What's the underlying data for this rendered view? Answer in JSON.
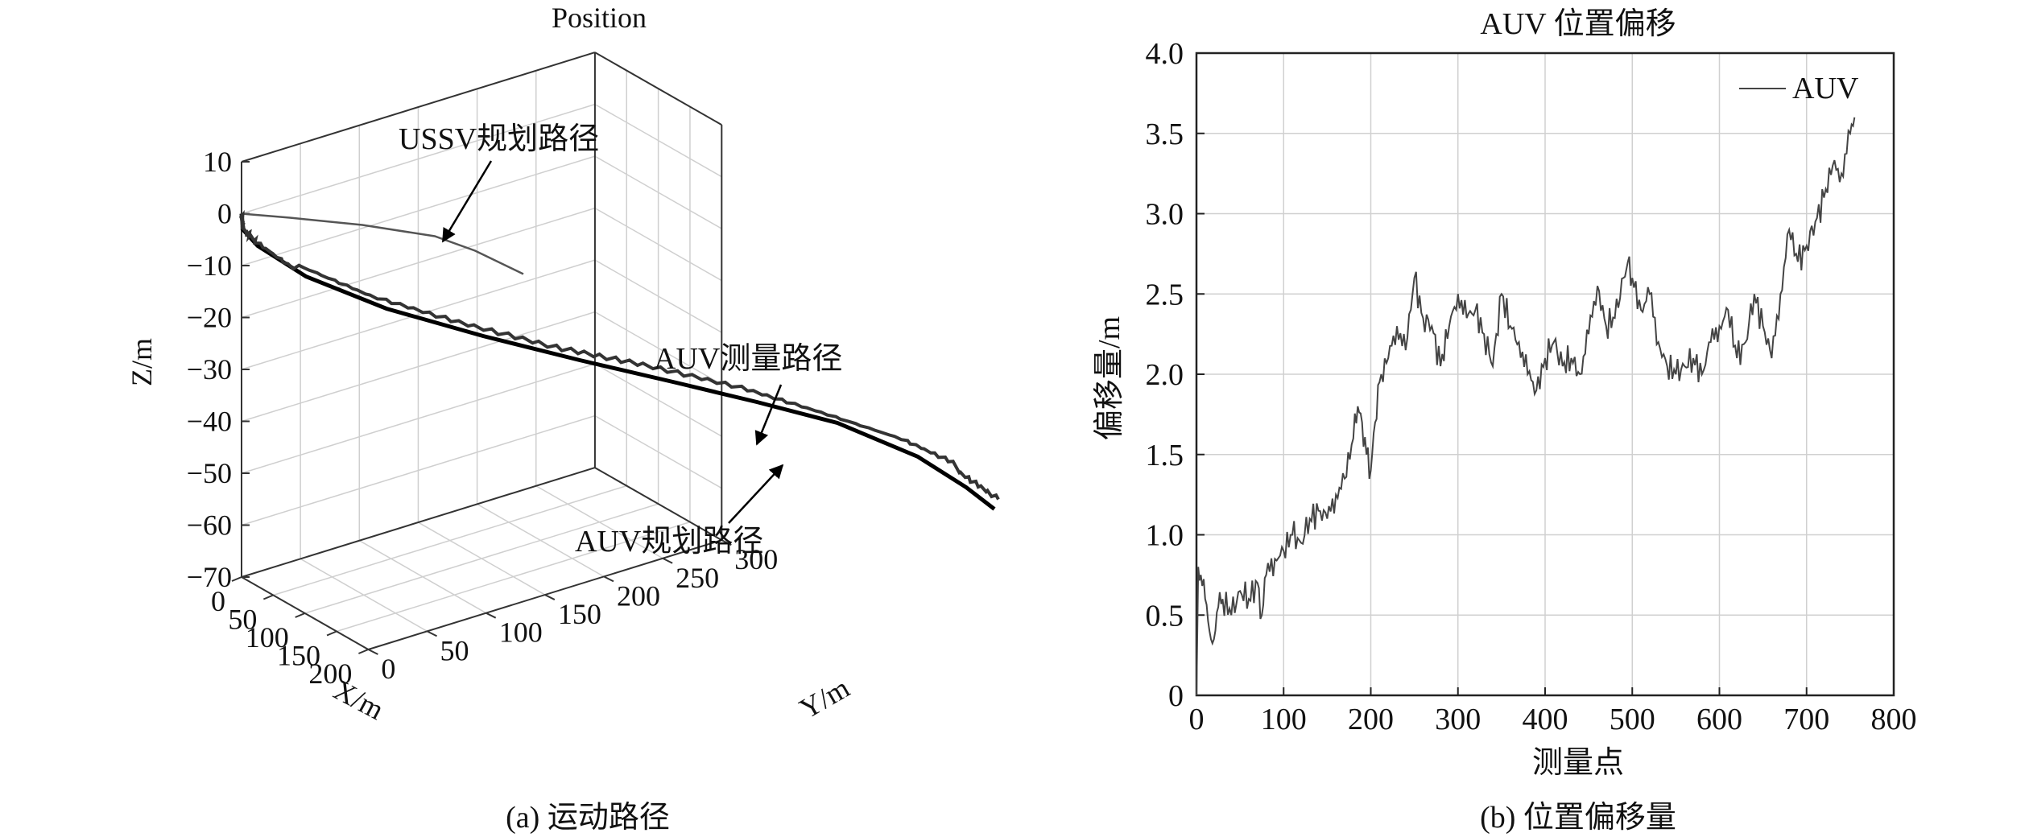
{
  "chart_data": [
    {
      "type": "line",
      "subtype": "3d-trajectory",
      "title": "Position",
      "xlabel": "X/m",
      "ylabel": "Y/m",
      "zlabel": "Z/m",
      "xlim": [
        0,
        200
      ],
      "ylim": [
        0,
        300
      ],
      "zlim": [
        -70,
        10
      ],
      "x_ticks": [
        "0",
        "50",
        "100",
        "150",
        "200"
      ],
      "y_ticks": [
        "0",
        "50",
        "100",
        "150",
        "200",
        "250",
        "300"
      ],
      "z_ticks": [
        "10",
        "0",
        "−10",
        "−20",
        "−30",
        "−40",
        "−50",
        "−60",
        "−70"
      ],
      "grid": true,
      "annotations": [
        "USSV规划路径",
        "AUV测量路径",
        "AUV规划路径"
      ],
      "caption": "(a) 运动路径",
      "series": [
        {
          "name": "USSV规划路径",
          "points": [
            [
              0,
              0,
              0
            ],
            [
              20,
              15,
              0
            ],
            [
              45,
              30,
              0
            ],
            [
              75,
              45,
              0
            ],
            [
              105,
              55,
              0
            ],
            [
              135,
              62,
              0
            ]
          ]
        },
        {
          "name": "AUV规划路径",
          "points": [
            [
              0,
              0,
              0
            ],
            [
              1,
              1,
              -3
            ],
            [
              10,
              10,
              -10
            ],
            [
              28,
              28,
              -20
            ],
            [
              50,
              50,
              -30
            ],
            [
              75,
              75,
              -38
            ],
            [
              100,
              100,
              -44
            ],
            [
              125,
              125,
              -49
            ],
            [
              150,
              150,
              -54
            ],
            [
              175,
              175,
              -58
            ],
            [
              190,
              190,
              -62
            ],
            [
              200,
              200,
              -66
            ]
          ]
        },
        {
          "name": "AUV测量路径",
          "points": [
            [
              0,
              0,
              0
            ],
            [
              1,
              1,
              -3
            ],
            [
              10,
              10,
              -10
            ],
            [
              28,
              28,
              -20
            ],
            [
              50,
              50,
              -29
            ],
            [
              75,
              75,
              -36
            ],
            [
              100,
              100,
              -42
            ],
            [
              125,
              125,
              -46
            ],
            [
              150,
              150,
              -51
            ],
            [
              175,
              175,
              -56
            ],
            [
              190,
              190,
              -60
            ],
            [
              200,
              200,
              -64
            ]
          ]
        }
      ]
    },
    {
      "type": "line",
      "title": "AUV 位置偏移",
      "xlabel": "测量点",
      "ylabel": "偏移量/m",
      "xlim": [
        0,
        800
      ],
      "ylim": [
        0,
        4.0
      ],
      "x_ticks": [
        "0",
        "100",
        "200",
        "300",
        "400",
        "500",
        "600",
        "700",
        "800"
      ],
      "y_ticks": [
        "4.0",
        "3.5",
        "3.0",
        "2.5",
        "2.0",
        "1.5",
        "1.0",
        "0.5",
        "0"
      ],
      "grid": true,
      "legend_position": "top-right",
      "caption": "(b) 位置偏移量",
      "series": [
        {
          "name": "AUV",
          "x": [
            0,
            2,
            5,
            10,
            15,
            20,
            25,
            30,
            40,
            50,
            60,
            70,
            75,
            80,
            90,
            100,
            110,
            120,
            130,
            140,
            150,
            160,
            170,
            180,
            185,
            190,
            195,
            200,
            205,
            210,
            220,
            230,
            240,
            250,
            260,
            270,
            280,
            290,
            300,
            310,
            320,
            330,
            340,
            350,
            360,
            370,
            380,
            390,
            400,
            410,
            420,
            430,
            440,
            450,
            460,
            470,
            480,
            490,
            495,
            500,
            510,
            520,
            530,
            540,
            550,
            560,
            570,
            580,
            590,
            600,
            610,
            620,
            630,
            640,
            650,
            660,
            670,
            680,
            690,
            700,
            710,
            720,
            730,
            740,
            750,
            755
          ],
          "values": [
            0.0,
            0.8,
            0.75,
            0.6,
            0.4,
            0.35,
            0.55,
            0.6,
            0.5,
            0.65,
            0.6,
            0.7,
            0.5,
            0.75,
            0.85,
            0.9,
            1.0,
            0.95,
            1.1,
            1.15,
            1.1,
            1.25,
            1.35,
            1.6,
            1.8,
            1.7,
            1.5,
            1.4,
            1.7,
            1.95,
            2.1,
            2.3,
            2.15,
            2.6,
            2.35,
            2.3,
            2.05,
            2.3,
            2.5,
            2.35,
            2.4,
            2.25,
            2.05,
            2.5,
            2.3,
            2.2,
            2.0,
            1.9,
            2.1,
            2.2,
            2.05,
            2.1,
            2.0,
            2.25,
            2.55,
            2.3,
            2.35,
            2.6,
            2.7,
            2.6,
            2.4,
            2.5,
            2.2,
            2.05,
            2.0,
            2.05,
            2.1,
            2.0,
            2.2,
            2.3,
            2.4,
            2.1,
            2.2,
            2.5,
            2.3,
            2.1,
            2.5,
            2.9,
            2.7,
            2.8,
            2.95,
            3.1,
            3.3,
            3.25,
            3.5,
            3.6
          ]
        }
      ]
    }
  ]
}
